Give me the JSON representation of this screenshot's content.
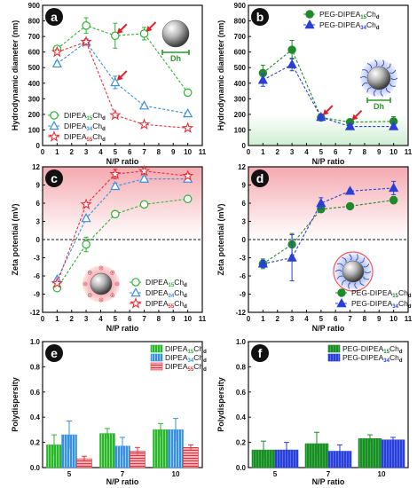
{
  "colors": {
    "green": "#2db42d",
    "blue": "#3a8fe0",
    "red": "#e8303a",
    "green_dark": "#1f8a2a",
    "blue_dark": "#2a3fd8",
    "pink_top": "#f6b8bd",
    "green_band": "#d9f3dc"
  },
  "chart_data": [
    {
      "id": "a",
      "panel_label": "a",
      "type": "line",
      "xlabel": "N/P ratio",
      "ylabel": "Hydrodynamic diameter (nm)",
      "xlim": [
        0,
        11
      ],
      "ylim": [
        0,
        900
      ],
      "xticks": [
        0,
        1,
        2,
        3,
        4,
        5,
        6,
        7,
        8,
        9,
        10,
        11
      ],
      "yticks": [
        0,
        100,
        200,
        300,
        400,
        500,
        600,
        700,
        800,
        900
      ],
      "x": [
        1,
        3,
        5,
        7,
        10
      ],
      "legend_position": "bottom-left",
      "inset_label": "Dh",
      "series": [
        {
          "name": "DIPEA",
          "sub": "15",
          "suffix": "Ch",
          "suffix_sub": "d",
          "color": "green",
          "marker": "circle",
          "values": [
            620,
            770,
            705,
            718,
            340
          ],
          "errors": [
            20,
            50,
            80,
            40,
            0
          ]
        },
        {
          "name": "DIPEA",
          "sub": "34",
          "suffix": "Ch",
          "suffix_sub": "d",
          "color": "blue",
          "marker": "triangle",
          "values": [
            525,
            665,
            405,
            255,
            205
          ],
          "errors": [
            15,
            20,
            40,
            0,
            0
          ]
        },
        {
          "name": "DIPEA",
          "sub": "55",
          "suffix": "Ch",
          "suffix_sub": "d",
          "color": "red",
          "marker": "star",
          "values": [
            600,
            665,
            195,
            135,
            112
          ],
          "errors": [
            15,
            15,
            0,
            0,
            0
          ]
        }
      ],
      "arrows_at": [
        [
          5,
          705
        ],
        [
          7,
          718
        ],
        [
          5,
          405
        ]
      ]
    },
    {
      "id": "b",
      "panel_label": "b",
      "type": "line",
      "xlabel": "N/P ratio",
      "ylabel": "Hydrodynamic diameter (nm)",
      "xlim": [
        0,
        11
      ],
      "ylim": [
        0,
        900
      ],
      "xticks": [
        0,
        1,
        2,
        3,
        4,
        5,
        6,
        7,
        8,
        9,
        10,
        11
      ],
      "yticks": [
        0,
        100,
        200,
        300,
        400,
        500,
        600,
        700,
        800,
        900
      ],
      "x": [
        1,
        3,
        5,
        7,
        10
      ],
      "legend_position": "top-right",
      "inset_label": "Dh",
      "series": [
        {
          "name": "PEG-DIPEA",
          "sub": "15",
          "suffix": "Ch",
          "suffix_sub": "d",
          "color": "green_dark",
          "marker": "filled-circle",
          "values": [
            465,
            615,
            180,
            150,
            155
          ],
          "errors": [
            50,
            60,
            20,
            20,
            30
          ]
        },
        {
          "name": "PEG-DIPEA",
          "sub": "34",
          "suffix": "Ch",
          "suffix_sub": "d",
          "color": "blue_dark",
          "marker": "filled-triangle",
          "values": [
            420,
            520,
            182,
            122,
            122
          ],
          "errors": [
            40,
            40,
            20,
            15,
            15
          ]
        }
      ],
      "arrows_at": [
        [
          5,
          182
        ],
        [
          7,
          150
        ]
      ]
    },
    {
      "id": "c",
      "panel_label": "c",
      "type": "line",
      "xlabel": "N/P ratio",
      "ylabel": "Zeta potential (mV)",
      "xlim": [
        0,
        11
      ],
      "ylim": [
        -12,
        12
      ],
      "xticks": [
        0,
        1,
        2,
        3,
        4,
        5,
        6,
        7,
        8,
        9,
        10,
        11
      ],
      "yticks": [
        -12,
        -9,
        -6,
        -3,
        0,
        3,
        6,
        9,
        12
      ],
      "x": [
        1,
        3,
        5,
        7,
        10
      ],
      "legend_position": "bottom-right",
      "series": [
        {
          "name": "DIPEA",
          "sub": "15",
          "suffix": "Ch",
          "suffix_sub": "d",
          "color": "green",
          "marker": "circle",
          "values": [
            -8.0,
            -0.8,
            4.2,
            5.8,
            6.7
          ],
          "errors": [
            0.3,
            1.2,
            0.3,
            0.3,
            0.5
          ]
        },
        {
          "name": "DIPEA",
          "sub": "34",
          "suffix": "Ch",
          "suffix_sub": "d",
          "color": "blue",
          "marker": "triangle",
          "values": [
            -6.6,
            3.5,
            8.8,
            10.0,
            10.0
          ],
          "errors": [
            0.3,
            0.3,
            0.5,
            0.5,
            0.5
          ]
        },
        {
          "name": "DIPEA",
          "sub": "55",
          "suffix": "Ch",
          "suffix_sub": "d",
          "color": "red",
          "marker": "star",
          "values": [
            -7.2,
            5.8,
            10.8,
            11.3,
            10.5
          ],
          "errors": [
            0.3,
            0.3,
            0.8,
            0.5,
            0.4
          ]
        }
      ]
    },
    {
      "id": "d",
      "panel_label": "d",
      "type": "line",
      "xlabel": "N/P ratio",
      "ylabel": "Zeta potential (mV)",
      "xlim": [
        0,
        11
      ],
      "ylim": [
        -12,
        12
      ],
      "xticks": [
        0,
        1,
        2,
        3,
        4,
        5,
        6,
        7,
        8,
        9,
        10,
        11
      ],
      "yticks": [
        -12,
        -9,
        -6,
        -3,
        0,
        3,
        6,
        9,
        12
      ],
      "x": [
        1,
        3,
        5,
        7,
        10
      ],
      "legend_position": "bottom-right",
      "series": [
        {
          "name": "PEG-DIPEA",
          "sub": "15",
          "suffix": "Ch",
          "suffix_sub": "d",
          "color": "green_dark",
          "marker": "filled-circle",
          "values": [
            -4.0,
            -0.8,
            5.0,
            5.5,
            6.5
          ],
          "errors": [
            0.8,
            1.8,
            0.5,
            0.4,
            0.6
          ]
        },
        {
          "name": "PEG-DIPEA",
          "sub": "34",
          "suffix": "Ch",
          "suffix_sub": "d",
          "color": "blue_dark",
          "marker": "filled-triangle",
          "values": [
            -4.0,
            -3.0,
            6.0,
            8.0,
            8.5
          ],
          "errors": [
            0.6,
            3.8,
            0.9,
            0.3,
            1.1
          ]
        }
      ]
    },
    {
      "id": "e",
      "panel_label": "e",
      "type": "bar",
      "xlabel": "N/P ratio",
      "ylabel": "Polydispersity",
      "ylim": [
        0,
        1.0
      ],
      "yticks": [
        0.0,
        0.2,
        0.4,
        0.6,
        0.8,
        1.0
      ],
      "categories": [
        "5",
        "7",
        "10"
      ],
      "legend_position": "top-right",
      "series": [
        {
          "name": "DIPEA",
          "sub": "15",
          "suffix": "Ch",
          "suffix_sub": "d",
          "color": "green",
          "values": [
            0.18,
            0.27,
            0.3
          ],
          "errors": [
            0.08,
            0.04,
            0.05
          ]
        },
        {
          "name": "DIPEA",
          "sub": "34",
          "suffix": "Ch",
          "suffix_sub": "d",
          "color": "blue",
          "values": [
            0.26,
            0.17,
            0.3
          ],
          "errors": [
            0.11,
            0.07,
            0.09
          ]
        },
        {
          "name": "DIPEA",
          "sub": "55",
          "suffix": "Ch",
          "suffix_sub": "d",
          "color": "red",
          "values": [
            0.07,
            0.13,
            0.16
          ],
          "errors": [
            0.02,
            0.03,
            0.02
          ]
        }
      ]
    },
    {
      "id": "f",
      "panel_label": "f",
      "type": "bar",
      "xlabel": "N/P ratio",
      "ylabel": "Polydispersity",
      "ylim": [
        0,
        1.0
      ],
      "yticks": [
        0.0,
        0.2,
        0.4,
        0.6,
        0.8,
        1.0
      ],
      "categories": [
        "5",
        "7",
        "10"
      ],
      "legend_position": "top-right",
      "series": [
        {
          "name": "PEG-DIPEA",
          "sub": "15",
          "suffix": "Ch",
          "suffix_sub": "d",
          "color": "green_dark",
          "values": [
            0.14,
            0.19,
            0.23
          ],
          "errors": [
            0.07,
            0.09,
            0.03
          ]
        },
        {
          "name": "PEG-DIPEA",
          "sub": "34",
          "suffix": "Ch",
          "suffix_sub": "d",
          "color": "blue_dark",
          "values": [
            0.14,
            0.13,
            0.22
          ],
          "errors": [
            0.06,
            0.05,
            0.02
          ]
        }
      ]
    }
  ]
}
